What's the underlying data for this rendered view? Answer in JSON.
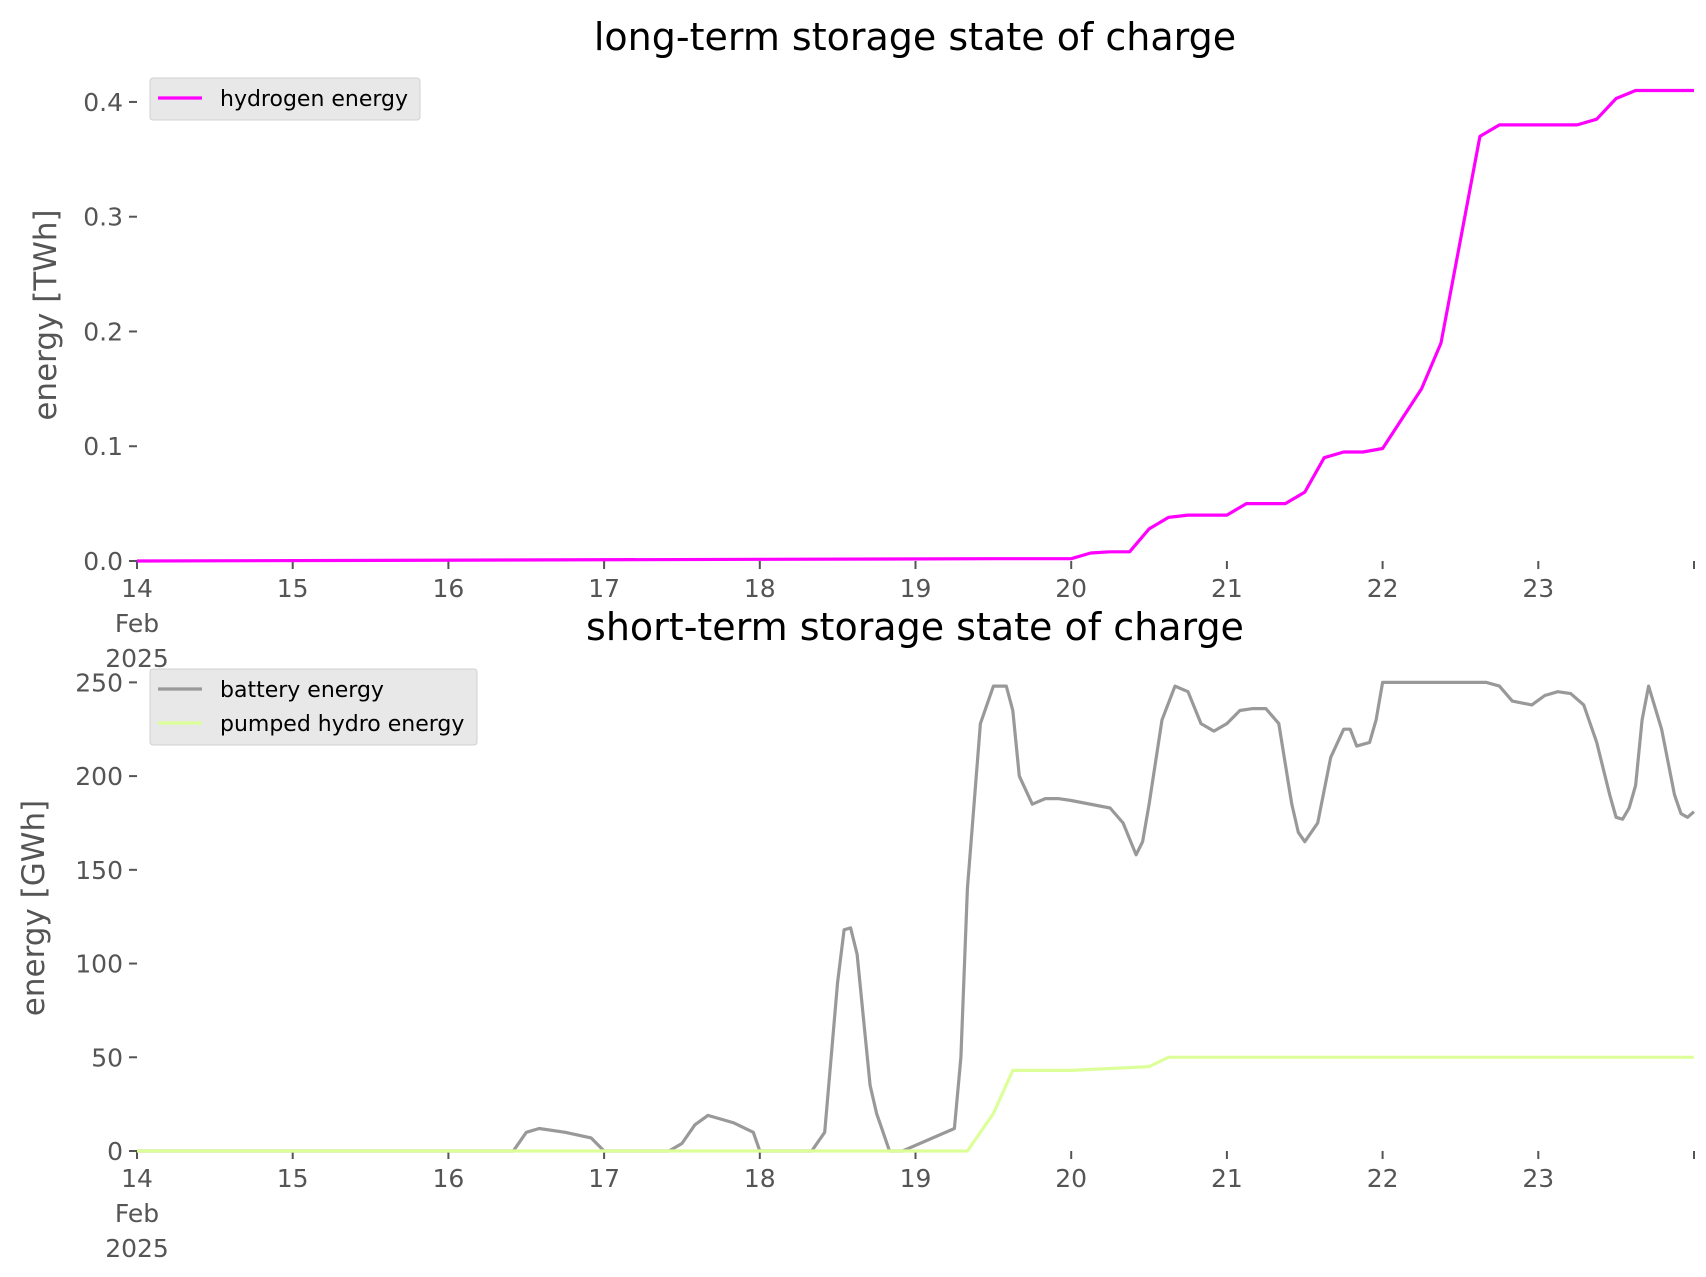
{
  "colors": {
    "hydrogen": "#ff00ff",
    "battery": "#999999",
    "pumped_hydro": "#ddff99",
    "text": "#555555",
    "legend_bg": "#e8e8e8"
  },
  "chart_data": [
    {
      "type": "line",
      "title": "long-term storage state of charge",
      "xlabel": "",
      "ylabel": "energy [TWh]",
      "xlim": [
        "2025-02-14",
        "2025-02-24"
      ],
      "ylim": [
        0,
        0.42
      ],
      "xtick_labels": [
        [
          "14",
          "Feb",
          "2025"
        ],
        [
          "15"
        ],
        [
          "16"
        ],
        [
          "17"
        ],
        [
          "18"
        ],
        [
          "19"
        ],
        [
          "20"
        ],
        [
          "21"
        ],
        [
          "22"
        ],
        [
          "23"
        ],
        []
      ],
      "yticks": [
        0.0,
        0.1,
        0.2,
        0.3,
        0.4
      ],
      "ytick_labels": [
        "0.0",
        "0.1",
        "0.2",
        "0.3",
        "0.4"
      ],
      "grid": false,
      "legend_position": "top-left",
      "series": [
        {
          "name": "hydrogen energy",
          "color": "#ff00ff",
          "x": [
            "2025-02-14T00:00",
            "2025-02-19T12:00",
            "2025-02-20T00:00",
            "2025-02-20T03:00",
            "2025-02-20T06:00",
            "2025-02-20T09:00",
            "2025-02-20T12:00",
            "2025-02-20T15:00",
            "2025-02-20T18:00",
            "2025-02-20T21:00",
            "2025-02-21T00:00",
            "2025-02-21T03:00",
            "2025-02-21T06:00",
            "2025-02-21T09:00",
            "2025-02-21T12:00",
            "2025-02-21T15:00",
            "2025-02-21T18:00",
            "2025-02-21T21:00",
            "2025-02-22T00:00",
            "2025-02-22T06:00",
            "2025-02-22T09:00",
            "2025-02-22T12:00",
            "2025-02-22T15:00",
            "2025-02-22T18:00",
            "2025-02-23T00:00",
            "2025-02-23T06:00",
            "2025-02-23T09:00",
            "2025-02-23T12:00",
            "2025-02-23T15:00",
            "2025-02-24T00:00"
          ],
          "y": [
            0.0,
            0.002,
            0.002,
            0.007,
            0.008,
            0.008,
            0.028,
            0.038,
            0.04,
            0.04,
            0.04,
            0.05,
            0.05,
            0.05,
            0.06,
            0.09,
            0.095,
            0.095,
            0.098,
            0.15,
            0.19,
            0.28,
            0.37,
            0.38,
            0.38,
            0.38,
            0.385,
            0.403,
            0.41,
            0.41
          ]
        }
      ]
    },
    {
      "type": "line",
      "title": "short-term storage state of charge",
      "xlabel": "",
      "ylabel": "energy [GWh]",
      "xlim": [
        "2025-02-14",
        "2025-02-24"
      ],
      "ylim": [
        0,
        255
      ],
      "xtick_labels": [
        [
          "14",
          "Feb",
          "2025"
        ],
        [
          "15"
        ],
        [
          "16"
        ],
        [
          "17"
        ],
        [
          "18"
        ],
        [
          "19"
        ],
        [
          "20"
        ],
        [
          "21"
        ],
        [
          "22"
        ],
        [
          "23"
        ],
        []
      ],
      "yticks": [
        0,
        50,
        100,
        150,
        200,
        250
      ],
      "ytick_labels": [
        "0",
        "50",
        "100",
        "150",
        "200",
        "250"
      ],
      "grid": false,
      "legend_position": "top-left",
      "series": [
        {
          "name": "battery energy",
          "color": "#999999",
          "x": [
            "2025-02-14T00:00",
            "2025-02-16T10:00",
            "2025-02-16T12:00",
            "2025-02-16T14:00",
            "2025-02-16T18:00",
            "2025-02-16T22:00",
            "2025-02-17T00:00",
            "2025-02-17T10:00",
            "2025-02-17T12:00",
            "2025-02-17T14:00",
            "2025-02-17T16:00",
            "2025-02-17T20:00",
            "2025-02-17T23:00",
            "2025-02-18T00:00",
            "2025-02-18T08:00",
            "2025-02-18T10:00",
            "2025-02-18T12:00",
            "2025-02-18T13:00",
            "2025-02-18T14:00",
            "2025-02-18T15:00",
            "2025-02-18T16:00",
            "2025-02-18T17:00",
            "2025-02-18T18:00",
            "2025-02-18T19:00",
            "2025-02-18T20:00",
            "2025-02-18T21:00",
            "2025-02-18T22:00",
            "2025-02-19T06:00",
            "2025-02-19T07:00",
            "2025-02-19T08:00",
            "2025-02-19T10:00",
            "2025-02-19T12:00",
            "2025-02-19T14:00",
            "2025-02-19T15:00",
            "2025-02-19T16:00",
            "2025-02-19T18:00",
            "2025-02-19T20:00",
            "2025-02-19T22:00",
            "2025-02-20T00:00",
            "2025-02-20T06:00",
            "2025-02-20T08:00",
            "2025-02-20T10:00",
            "2025-02-20T11:00",
            "2025-02-20T12:00",
            "2025-02-20T14:00",
            "2025-02-20T16:00",
            "2025-02-20T18:00",
            "2025-02-20T20:00",
            "2025-02-20T22:00",
            "2025-02-21T00:00",
            "2025-02-21T02:00",
            "2025-02-21T04:00",
            "2025-02-21T06:00",
            "2025-02-21T08:00",
            "2025-02-21T10:00",
            "2025-02-21T11:00",
            "2025-02-21T12:00",
            "2025-02-21T14:00",
            "2025-02-21T16:00",
            "2025-02-21T18:00",
            "2025-02-21T19:00",
            "2025-02-21T20:00",
            "2025-02-21T22:00",
            "2025-02-21T23:00",
            "2025-02-22T00:00",
            "2025-02-22T08:00",
            "2025-02-22T16:00",
            "2025-02-22T18:00",
            "2025-02-22T20:00",
            "2025-02-22T23:00",
            "2025-02-23T01:00",
            "2025-02-23T03:00",
            "2025-02-23T05:00",
            "2025-02-23T07:00",
            "2025-02-23T09:00",
            "2025-02-23T11:00",
            "2025-02-23T12:00",
            "2025-02-23T13:00",
            "2025-02-23T14:00",
            "2025-02-23T15:00",
            "2025-02-23T16:00",
            "2025-02-23T17:00",
            "2025-02-23T19:00",
            "2025-02-23T21:00",
            "2025-02-23T22:00",
            "2025-02-23T23:00",
            "2025-02-24T00:00"
          ],
          "y": [
            0,
            0,
            10,
            12,
            10,
            7,
            0,
            0,
            4,
            14,
            19,
            15,
            10,
            0,
            0,
            10,
            90,
            118,
            119,
            105,
            70,
            35,
            20,
            10,
            0,
            0,
            0,
            12,
            50,
            140,
            228,
            248,
            248,
            235,
            200,
            185,
            188,
            188,
            187,
            183,
            175,
            158,
            165,
            185,
            230,
            248,
            245,
            228,
            224,
            228,
            235,
            236,
            236,
            228,
            185,
            170,
            165,
            175,
            210,
            225,
            225,
            216,
            218,
            230,
            250,
            250,
            250,
            248,
            240,
            238,
            243,
            245,
            244,
            238,
            218,
            190,
            178,
            177,
            183,
            195,
            230,
            248,
            225,
            190,
            180,
            178,
            181
          ]
        },
        {
          "name": "pumped hydro energy",
          "color": "#ddff99",
          "x": [
            "2025-02-14T00:00",
            "2025-02-19T08:00",
            "2025-02-19T12:00",
            "2025-02-19T15:00",
            "2025-02-19T18:00",
            "2025-02-20T00:00",
            "2025-02-20T12:00",
            "2025-02-20T15:00",
            "2025-02-24T00:00"
          ],
          "y": [
            0,
            0,
            20,
            43,
            43,
            43,
            45,
            50,
            50
          ]
        }
      ]
    }
  ]
}
